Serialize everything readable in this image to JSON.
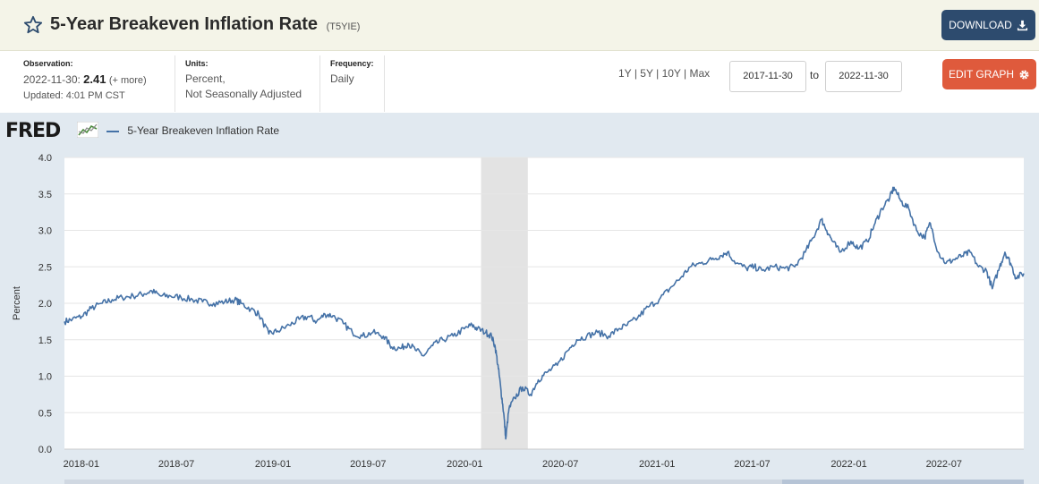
{
  "header": {
    "title": "5-Year Breakeven Inflation Rate",
    "series_id": "(T5YIE)",
    "download_label": "DOWNLOAD",
    "edit_label": "EDIT GRAPH"
  },
  "meta": {
    "observation_label": "Observation:",
    "observation_date": "2022-11-30:",
    "observation_value": "2.41",
    "observation_more": "(+ more)",
    "updated": "Updated: 4:01 PM CST",
    "units_label": "Units:",
    "units_line1": "Percent,",
    "units_line2": "Not Seasonally Adjusted",
    "frequency_label": "Frequency:",
    "frequency_value": "Daily"
  },
  "range": {
    "opt_1y": "1Y",
    "opt_5y": "5Y",
    "opt_10y": "10Y",
    "opt_max": "Max",
    "sep": "|",
    "from": "2017-11-30",
    "to_label": "to",
    "to": "2022-11-30"
  },
  "brand": {
    "logo_text": "FRED",
    "line_color": "#4572a7",
    "recession_color": "#e3e3e3",
    "download_color": "#2d4b6e",
    "edit_color": "#df5a3c"
  },
  "chart_data": {
    "type": "line",
    "title": "5-Year Breakeven Inflation Rate",
    "ylabel": "Percent",
    "ylim": [
      0,
      4.0
    ],
    "yticks": [
      "0.0",
      "0.5",
      "1.0",
      "1.5",
      "2.0",
      "2.5",
      "3.0",
      "3.5",
      "4.0"
    ],
    "xlim": [
      "2017-11-30",
      "2022-11-30"
    ],
    "xticks": [
      "2018-01",
      "2018-07",
      "2019-01",
      "2019-07",
      "2020-01",
      "2020-07",
      "2021-01",
      "2021-07",
      "2022-01",
      "2022-07"
    ],
    "grid": true,
    "legend": "top-left",
    "recession": [
      "2020-02-01",
      "2020-04-30"
    ],
    "series": [
      {
        "name": "5-Year Breakeven Inflation Rate",
        "points": [
          [
            "2017-11-30",
            1.75
          ],
          [
            "2017-12-15",
            1.78
          ],
          [
            "2018-01-02",
            1.82
          ],
          [
            "2018-01-20",
            1.93
          ],
          [
            "2018-02-10",
            2.0
          ],
          [
            "2018-03-01",
            2.05
          ],
          [
            "2018-03-20",
            2.08
          ],
          [
            "2018-04-10",
            2.1
          ],
          [
            "2018-05-01",
            2.13
          ],
          [
            "2018-05-15",
            2.17
          ],
          [
            "2018-06-01",
            2.1
          ],
          [
            "2018-06-20",
            2.1
          ],
          [
            "2018-07-10",
            2.08
          ],
          [
            "2018-08-01",
            2.05
          ],
          [
            "2018-08-20",
            2.02
          ],
          [
            "2018-09-10",
            2.0
          ],
          [
            "2018-10-01",
            2.02
          ],
          [
            "2018-10-20",
            2.05
          ],
          [
            "2018-11-01",
            2.0
          ],
          [
            "2018-11-20",
            1.92
          ],
          [
            "2018-12-05",
            1.85
          ],
          [
            "2018-12-24",
            1.58
          ],
          [
            "2019-01-10",
            1.62
          ],
          [
            "2019-02-01",
            1.7
          ],
          [
            "2019-02-20",
            1.78
          ],
          [
            "2019-03-10",
            1.82
          ],
          [
            "2019-03-25",
            1.75
          ],
          [
            "2019-04-10",
            1.85
          ],
          [
            "2019-04-25",
            1.83
          ],
          [
            "2019-05-15",
            1.72
          ],
          [
            "2019-06-01",
            1.6
          ],
          [
            "2019-06-20",
            1.55
          ],
          [
            "2019-07-10",
            1.6
          ],
          [
            "2019-07-30",
            1.55
          ],
          [
            "2019-08-15",
            1.4
          ],
          [
            "2019-09-01",
            1.38
          ],
          [
            "2019-09-15",
            1.45
          ],
          [
            "2019-10-01",
            1.35
          ],
          [
            "2019-10-15",
            1.28
          ],
          [
            "2019-11-01",
            1.42
          ],
          [
            "2019-11-20",
            1.5
          ],
          [
            "2019-12-10",
            1.55
          ],
          [
            "2019-12-31",
            1.65
          ],
          [
            "2020-01-15",
            1.7
          ],
          [
            "2020-01-25",
            1.65
          ],
          [
            "2020-02-10",
            1.6
          ],
          [
            "2020-02-21",
            1.55
          ],
          [
            "2020-02-28",
            1.4
          ],
          [
            "2020-03-05",
            1.1
          ],
          [
            "2020-03-10",
            0.8
          ],
          [
            "2020-03-15",
            0.5
          ],
          [
            "2020-03-19",
            0.14
          ],
          [
            "2020-03-25",
            0.55
          ],
          [
            "2020-04-05",
            0.7
          ],
          [
            "2020-04-20",
            0.85
          ],
          [
            "2020-05-05",
            0.75
          ],
          [
            "2020-05-20",
            0.95
          ],
          [
            "2020-06-05",
            1.05
          ],
          [
            "2020-06-25",
            1.15
          ],
          [
            "2020-07-15",
            1.35
          ],
          [
            "2020-08-01",
            1.5
          ],
          [
            "2020-08-20",
            1.55
          ],
          [
            "2020-09-10",
            1.6
          ],
          [
            "2020-10-01",
            1.55
          ],
          [
            "2020-10-20",
            1.65
          ],
          [
            "2020-11-05",
            1.7
          ],
          [
            "2020-11-25",
            1.8
          ],
          [
            "2020-12-15",
            1.95
          ],
          [
            "2021-01-05",
            2.05
          ],
          [
            "2021-01-25",
            2.2
          ],
          [
            "2021-02-15",
            2.35
          ],
          [
            "2021-03-05",
            2.5
          ],
          [
            "2021-03-25",
            2.55
          ],
          [
            "2021-04-15",
            2.6
          ],
          [
            "2021-05-01",
            2.65
          ],
          [
            "2021-05-15",
            2.7
          ],
          [
            "2021-06-01",
            2.55
          ],
          [
            "2021-06-20",
            2.48
          ],
          [
            "2021-07-05",
            2.5
          ],
          [
            "2021-07-20",
            2.45
          ],
          [
            "2021-08-10",
            2.5
          ],
          [
            "2021-09-01",
            2.48
          ],
          [
            "2021-09-20",
            2.5
          ],
          [
            "2021-10-10",
            2.7
          ],
          [
            "2021-10-25",
            2.9
          ],
          [
            "2021-11-10",
            3.15
          ],
          [
            "2021-11-20",
            3.0
          ],
          [
            "2021-12-01",
            2.85
          ],
          [
            "2021-12-15",
            2.7
          ],
          [
            "2022-01-05",
            2.85
          ],
          [
            "2022-01-20",
            2.75
          ],
          [
            "2022-02-05",
            2.85
          ],
          [
            "2022-02-20",
            3.1
          ],
          [
            "2022-03-05",
            3.3
          ],
          [
            "2022-03-20",
            3.45
          ],
          [
            "2022-03-28",
            3.59
          ],
          [
            "2022-04-10",
            3.4
          ],
          [
            "2022-04-25",
            3.3
          ],
          [
            "2022-05-10",
            3.0
          ],
          [
            "2022-05-25",
            2.9
          ],
          [
            "2022-06-05",
            3.1
          ],
          [
            "2022-06-20",
            2.7
          ],
          [
            "2022-07-05",
            2.55
          ],
          [
            "2022-07-20",
            2.6
          ],
          [
            "2022-08-05",
            2.65
          ],
          [
            "2022-08-20",
            2.7
          ],
          [
            "2022-09-05",
            2.5
          ],
          [
            "2022-09-20",
            2.45
          ],
          [
            "2022-10-01",
            2.2
          ],
          [
            "2022-10-15",
            2.5
          ],
          [
            "2022-10-25",
            2.7
          ],
          [
            "2022-11-05",
            2.55
          ],
          [
            "2022-11-15",
            2.35
          ],
          [
            "2022-11-30",
            2.41
          ]
        ]
      }
    ]
  }
}
